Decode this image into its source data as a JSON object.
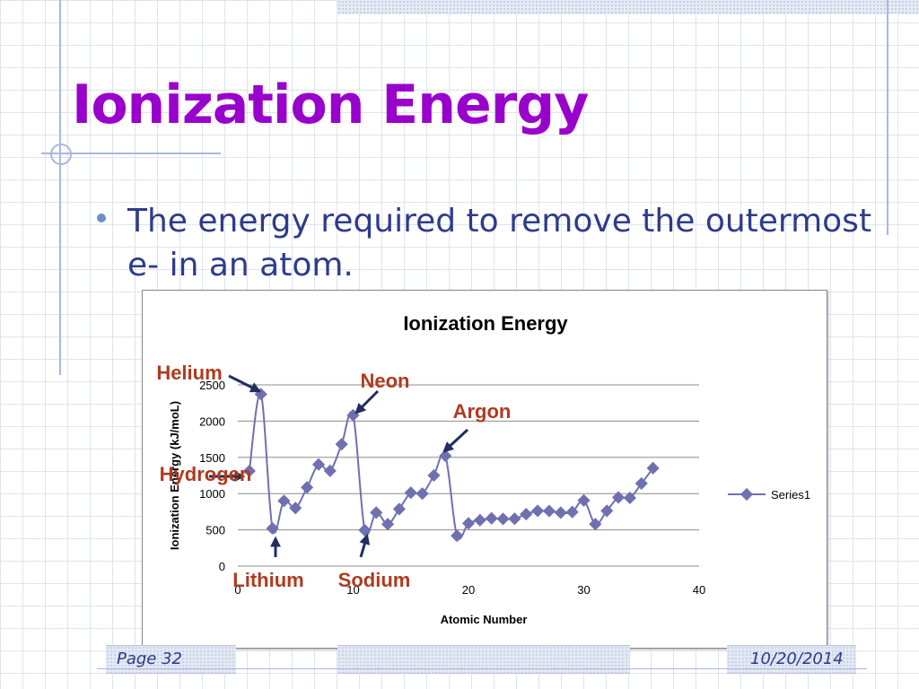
{
  "slide": {
    "title": "Ionization Energy",
    "bullet": "The energy required to remove the outermost e- in an atom.",
    "footer_page": "Page 32",
    "footer_date": "10/20/2014"
  },
  "colors": {
    "title": "#9900cc",
    "bullet_text": "#2e3b8a",
    "series": "#6f70b0",
    "annotation": "#b03a1e",
    "arrow": "#1f2f5f"
  },
  "chart_data": {
    "type": "line",
    "title": "Ionization Energy",
    "xlabel": "Atomic Number",
    "ylabel": "Ionization Energy (kJ/moL)",
    "xlim": [
      0,
      40
    ],
    "ylim": [
      0,
      2500
    ],
    "xticks": [
      0,
      10,
      20,
      30,
      40
    ],
    "yticks": [
      0,
      500,
      1000,
      1500,
      2000,
      2500
    ],
    "grid": "horizontal",
    "legend": "right",
    "series": [
      {
        "name": "Series1",
        "x": [
          1,
          2,
          3,
          4,
          5,
          6,
          7,
          8,
          9,
          10,
          11,
          12,
          13,
          14,
          15,
          16,
          17,
          18,
          19,
          20,
          21,
          22,
          23,
          24,
          25,
          26,
          27,
          28,
          29,
          30,
          31,
          32,
          33,
          34,
          35,
          36
        ],
        "y": [
          1312,
          2372,
          520,
          900,
          801,
          1086,
          1402,
          1314,
          1681,
          2081,
          496,
          738,
          578,
          787,
          1012,
          1000,
          1251,
          1521,
          419,
          590,
          633,
          659,
          651,
          653,
          717,
          762,
          760,
          737,
          746,
          906,
          579,
          762,
          947,
          941,
          1140,
          1351
        ]
      }
    ],
    "annotations": [
      {
        "label": "Helium",
        "x": 2,
        "y": 2372
      },
      {
        "label": "Hydrogen",
        "x": 1,
        "y": 1312
      },
      {
        "label": "Neon",
        "x": 10,
        "y": 2081
      },
      {
        "label": "Argon",
        "x": 18,
        "y": 1521
      },
      {
        "label": "Lithium",
        "x": 3,
        "y": 520
      },
      {
        "label": "Sodium",
        "x": 11,
        "y": 496
      }
    ]
  }
}
